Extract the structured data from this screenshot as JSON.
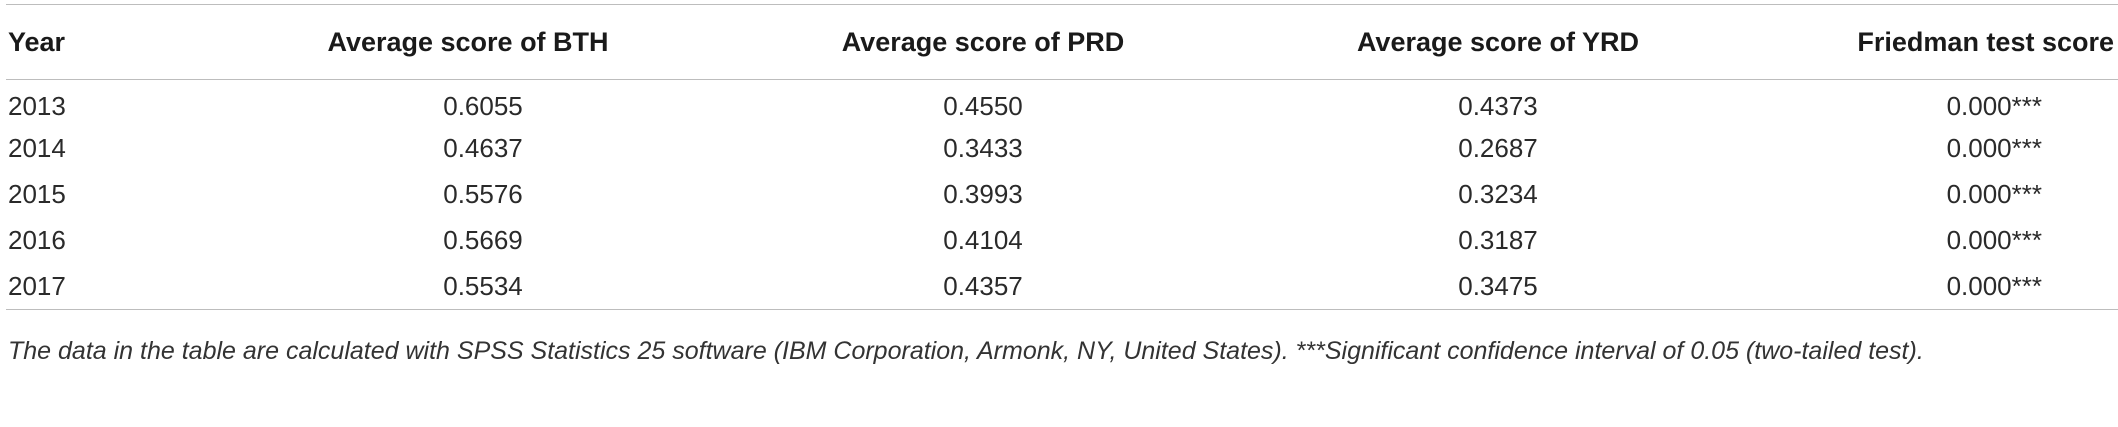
{
  "table": {
    "headers": {
      "year": "Year",
      "bth": "Average score of BTH",
      "prd": "Average score of PRD",
      "yrd": "Average score of YRD",
      "friedman": "Friedman test score"
    },
    "rows": [
      {
        "year": "2013",
        "bth": "0.6055",
        "prd": "0.4550",
        "yrd": "0.4373",
        "friedman": "0.000***"
      },
      {
        "year": "2014",
        "bth": "0.4637",
        "prd": "0.3433",
        "yrd": "0.2687",
        "friedman": "0.000***"
      },
      {
        "year": "2015",
        "bth": "0.5576",
        "prd": "0.3993",
        "yrd": "0.3234",
        "friedman": "0.000***"
      },
      {
        "year": "2016",
        "bth": "0.5669",
        "prd": "0.4104",
        "yrd": "0.3187",
        "friedman": "0.000***"
      },
      {
        "year": "2017",
        "bth": "0.5534",
        "prd": "0.4357",
        "yrd": "0.3475",
        "friedman": "0.000***"
      }
    ]
  },
  "footnote": "The data in the table are calculated with SPSS Statistics 25 software (IBM Corporation, Armonk, NY, United States). ***Significant confidence interval of 0.05 (two-tailed test)."
}
